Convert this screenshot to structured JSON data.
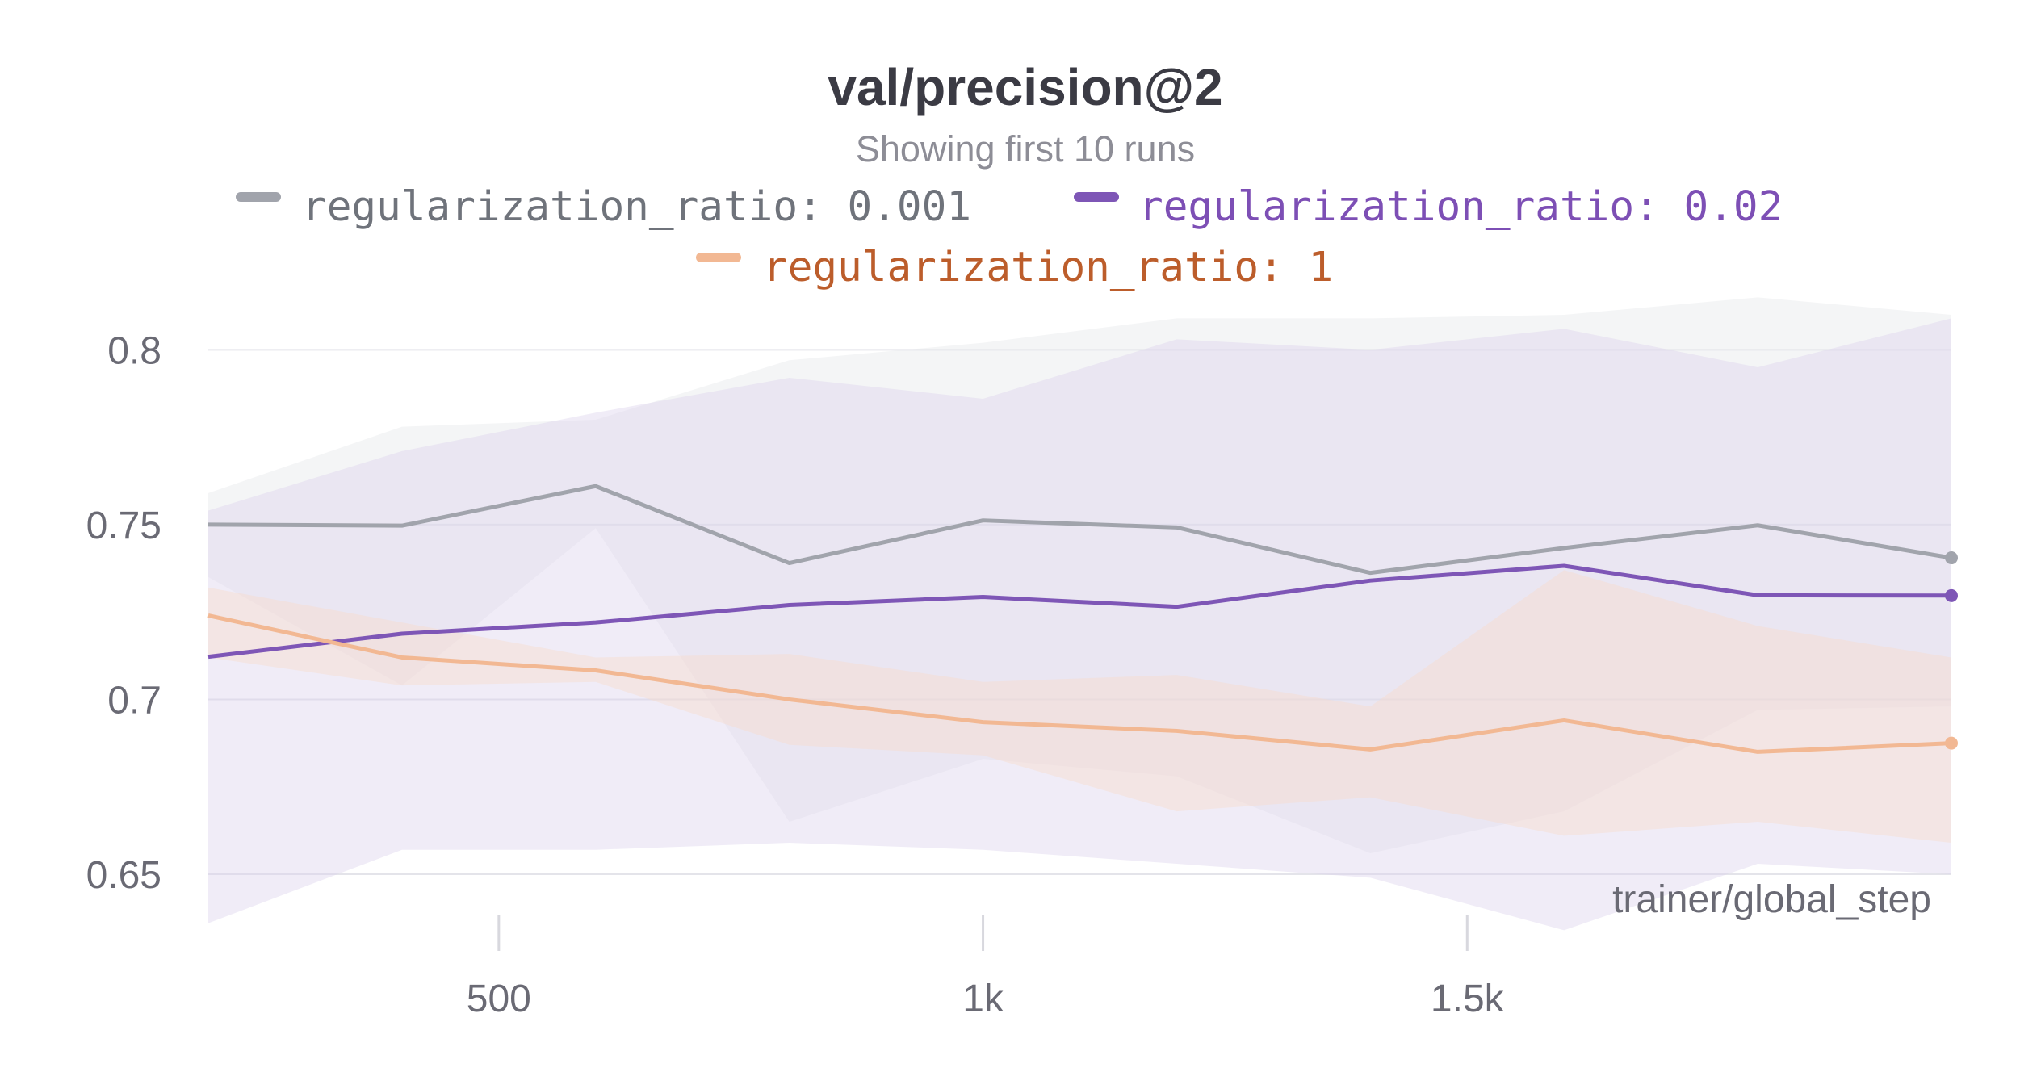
{
  "chart_data": {
    "type": "line",
    "title": "val/precision@2",
    "subtitle": "Showing first 10 runs",
    "xlabel": "trainer/global_step",
    "ylabel": "",
    "xlim": [
      200,
      2000
    ],
    "ylim": [
      0.635,
      0.81
    ],
    "x_ticks": [
      500,
      1000,
      1500
    ],
    "x_tick_labels": [
      "500",
      "1k",
      "1.5k"
    ],
    "y_ticks": [
      0.65,
      0.7,
      0.75,
      0.8
    ],
    "y_tick_labels": [
      "0.65",
      "0.7",
      "0.75",
      "0.8"
    ],
    "grid": true,
    "legend_position": "top-center",
    "x": [
      200,
      400,
      600,
      800,
      1000,
      1200,
      1400,
      1600,
      1800,
      2000
    ],
    "series": [
      {
        "name": "regularization_ratio: 0.001",
        "color": "#a1a4ac",
        "text_color": "#6f737b",
        "band_color": "#e4e6ea",
        "values": [
          0.75,
          0.7497,
          0.761,
          0.739,
          0.7512,
          0.7492,
          0.7362,
          0.7433,
          0.7498,
          0.7405
        ],
        "band_upper": [
          0.759,
          0.778,
          0.78,
          0.797,
          0.802,
          0.809,
          0.809,
          0.81,
          0.815,
          0.81
        ],
        "band_lower": [
          0.735,
          0.704,
          0.749,
          0.665,
          0.683,
          0.678,
          0.656,
          0.668,
          0.697,
          0.698
        ]
      },
      {
        "name": "regularization_ratio: 0.02",
        "color": "#7e56b6",
        "text_color": "#7d4fb5",
        "band_color": "#dcd2ec",
        "values": [
          0.7122,
          0.7188,
          0.722,
          0.727,
          0.7293,
          0.7265,
          0.734,
          0.7382,
          0.7298,
          0.7297
        ],
        "band_upper": [
          0.754,
          0.771,
          0.782,
          0.792,
          0.786,
          0.803,
          0.8,
          0.806,
          0.795,
          0.809
        ],
        "band_lower": [
          0.636,
          0.657,
          0.657,
          0.659,
          0.657,
          0.653,
          0.649,
          0.634,
          0.653,
          0.65
        ]
      },
      {
        "name": "regularization_ratio: 1",
        "color": "#f2b893",
        "text_color": "#bc5d2b",
        "band_color": "#f9dccb",
        "values": [
          0.724,
          0.712,
          0.7083,
          0.7,
          0.6935,
          0.691,
          0.6857,
          0.694,
          0.685,
          0.6875
        ],
        "band_upper": [
          0.732,
          0.722,
          0.712,
          0.713,
          0.705,
          0.707,
          0.698,
          0.737,
          0.721,
          0.712
        ],
        "band_lower": [
          0.712,
          0.704,
          0.705,
          0.687,
          0.684,
          0.668,
          0.672,
          0.661,
          0.665,
          0.659
        ]
      }
    ]
  }
}
